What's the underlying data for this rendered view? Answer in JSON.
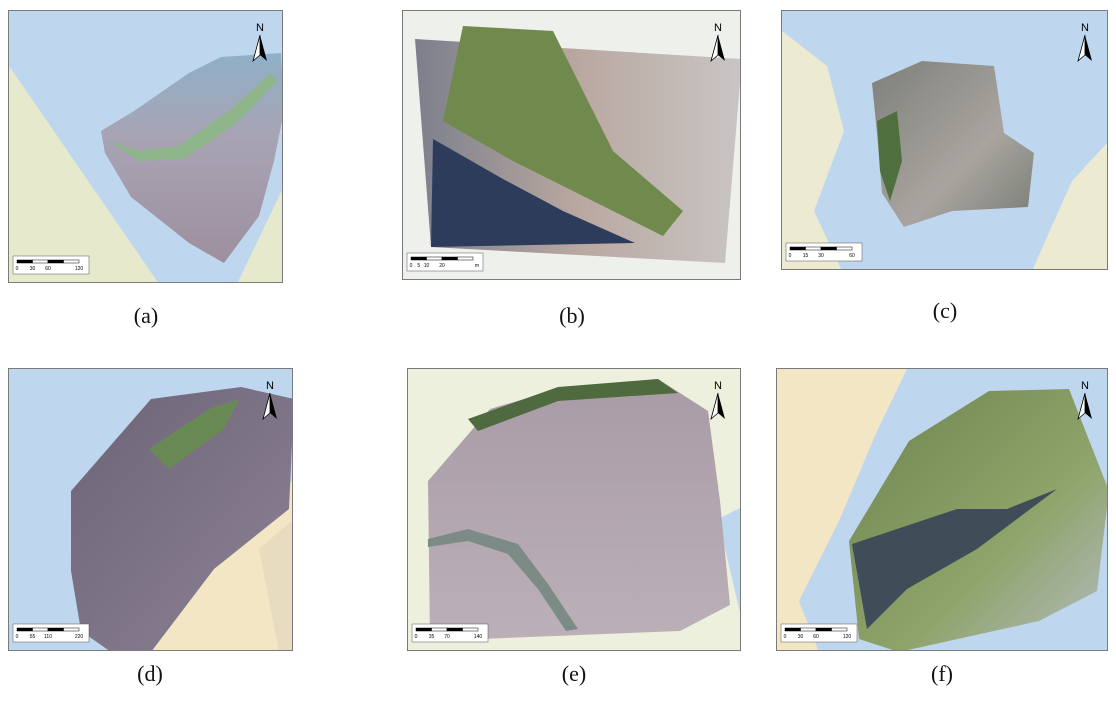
{
  "panels": [
    {
      "label": "(a)",
      "north": "N",
      "scale": [
        "0",
        "30",
        "60",
        "120"
      ]
    },
    {
      "label": "(b)",
      "north": "N",
      "scale": [
        "0",
        "5",
        "10",
        "20",
        "m"
      ]
    },
    {
      "label": "(c)",
      "north": "N",
      "scale": [
        "0",
        "15",
        "30",
        "60"
      ]
    },
    {
      "label": "(d)",
      "north": "N",
      "scale": [
        "0",
        "55",
        "110",
        "220"
      ]
    },
    {
      "label": "(e)",
      "north": "N",
      "scale": [
        "0",
        "35",
        "70",
        "140"
      ]
    },
    {
      "label": "(f)",
      "north": "N",
      "scale": [
        "0",
        "30",
        "60",
        "120"
      ]
    }
  ]
}
